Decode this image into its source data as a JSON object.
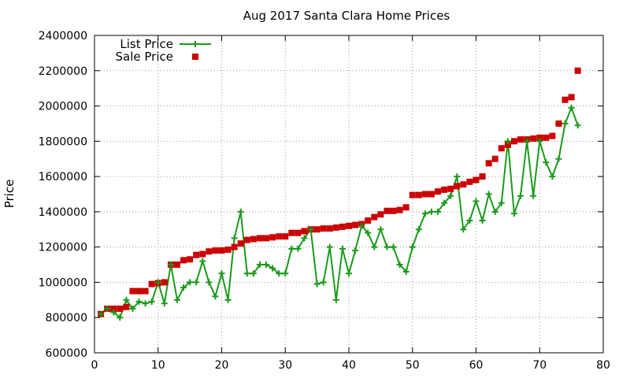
{
  "chart_data": {
    "type": "line",
    "title": "Aug 2017 Santa Clara Home Prices",
    "xlabel": "",
    "ylabel": "Price",
    "xlim": [
      0,
      80
    ],
    "ylim": [
      600000,
      2400000
    ],
    "xticks": [
      0,
      10,
      20,
      30,
      40,
      50,
      60,
      70,
      80
    ],
    "yticks": [
      600000,
      800000,
      1000000,
      1200000,
      1400000,
      1600000,
      1800000,
      2000000,
      2200000,
      2400000
    ],
    "grid": true,
    "legend_position": "top-left",
    "series": [
      {
        "name": "List Price",
        "style": "linespoints",
        "marker": "plus",
        "color": "#1a9a1a",
        "x": [
          1,
          2,
          3,
          4,
          5,
          6,
          7,
          8,
          9,
          10,
          11,
          12,
          13,
          14,
          15,
          16,
          17,
          18,
          19,
          20,
          21,
          22,
          23,
          24,
          25,
          26,
          27,
          28,
          29,
          30,
          31,
          32,
          33,
          34,
          35,
          36,
          37,
          38,
          39,
          40,
          41,
          42,
          43,
          44,
          45,
          46,
          47,
          48,
          49,
          50,
          51,
          52,
          53,
          54,
          55,
          56,
          57,
          58,
          59,
          60,
          61,
          62,
          63,
          64,
          65,
          66,
          67,
          68,
          69,
          70,
          71,
          72,
          73,
          74,
          75,
          76
        ],
        "y": [
          820000,
          850000,
          830000,
          800000,
          900000,
          850000,
          890000,
          880000,
          890000,
          1000000,
          880000,
          1100000,
          900000,
          970000,
          1000000,
          1000000,
          1120000,
          1000000,
          920000,
          1050000,
          900000,
          1250000,
          1400000,
          1050000,
          1050000,
          1100000,
          1100000,
          1080000,
          1050000,
          1050000,
          1190000,
          1190000,
          1250000,
          1300000,
          990000,
          1000000,
          1200000,
          900000,
          1190000,
          1050000,
          1180000,
          1320000,
          1280000,
          1200000,
          1300000,
          1200000,
          1200000,
          1100000,
          1060000,
          1200000,
          1300000,
          1390000,
          1400000,
          1400000,
          1450000,
          1490000,
          1600000,
          1300000,
          1350000,
          1460000,
          1350000,
          1500000,
          1400000,
          1450000,
          1800000,
          1390000,
          1490000,
          1800000,
          1490000,
          1800000,
          1680000,
          1600000,
          1700000,
          1900000,
          1990000,
          1890000
        ]
      },
      {
        "name": "Sale Price",
        "style": "points",
        "marker": "square",
        "color": "#cc0000",
        "x": [
          1,
          2,
          3,
          4,
          5,
          6,
          7,
          8,
          9,
          10,
          11,
          12,
          13,
          14,
          15,
          16,
          17,
          18,
          19,
          20,
          21,
          22,
          23,
          24,
          25,
          26,
          27,
          28,
          29,
          30,
          31,
          32,
          33,
          34,
          35,
          36,
          37,
          38,
          39,
          40,
          41,
          42,
          43,
          44,
          45,
          46,
          47,
          48,
          49,
          50,
          51,
          52,
          53,
          54,
          55,
          56,
          57,
          58,
          59,
          60,
          61,
          62,
          63,
          64,
          65,
          66,
          67,
          68,
          69,
          70,
          71,
          72,
          73,
          74,
          75,
          76
        ],
        "y": [
          820000,
          850000,
          850000,
          850000,
          860000,
          950000,
          950000,
          950000,
          990000,
          995000,
          1000000,
          1100000,
          1100000,
          1125000,
          1130000,
          1155000,
          1160000,
          1175000,
          1180000,
          1180000,
          1185000,
          1200000,
          1220000,
          1240000,
          1245000,
          1250000,
          1250000,
          1255000,
          1260000,
          1260000,
          1280000,
          1280000,
          1290000,
          1300000,
          1300000,
          1305000,
          1305000,
          1310000,
          1315000,
          1320000,
          1325000,
          1330000,
          1350000,
          1370000,
          1385000,
          1405000,
          1405000,
          1410000,
          1425000,
          1495000,
          1495000,
          1500000,
          1500000,
          1515000,
          1525000,
          1530000,
          1545000,
          1555000,
          1570000,
          1580000,
          1600000,
          1675000,
          1700000,
          1760000,
          1780000,
          1800000,
          1810000,
          1810000,
          1815000,
          1820000,
          1820000,
          1830000,
          1900000,
          2035000,
          2050000,
          2200000
        ]
      }
    ]
  }
}
